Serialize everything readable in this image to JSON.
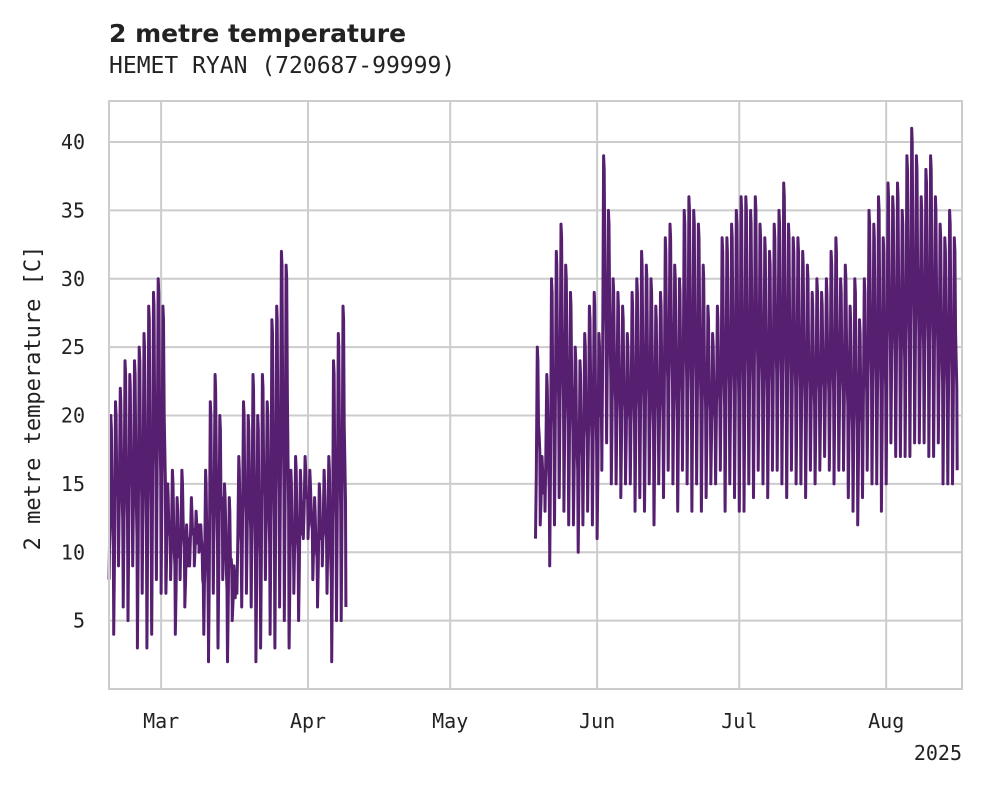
{
  "chart_data": {
    "type": "line",
    "title": "2 metre temperature",
    "subtitle": "HEMET RYAN (720687-99999)",
    "xlabel": "",
    "ylabel": "2 metre temperature [C]",
    "year_label": "2025",
    "x_ticks": [
      {
        "date": "2025-03-01",
        "label": "Mar"
      },
      {
        "date": "2025-04-01",
        "label": "Apr"
      },
      {
        "date": "2025-05-01",
        "label": "May"
      },
      {
        "date": "2025-06-01",
        "label": "Jun"
      },
      {
        "date": "2025-07-01",
        "label": "Jul"
      },
      {
        "date": "2025-08-01",
        "label": "Aug"
      }
    ],
    "y_ticks": [
      5,
      10,
      15,
      20,
      25,
      30,
      35,
      40
    ],
    "xlim": [
      "2025-02-18",
      "2025-08-17"
    ],
    "ylim": [
      0,
      43
    ],
    "grid": true,
    "series_color": "#561f70",
    "series": [
      {
        "segments": [
          {
            "start": "2025-02-18",
            "end": "2025-04-08",
            "daily_min": [
              8,
              4,
              9,
              6,
              5,
              9,
              3,
              7,
              3,
              4,
              8,
              7,
              7,
              8,
              4,
              8,
              6,
              9,
              9,
              10,
              4,
              2,
              7,
              3,
              8,
              2,
              5,
              7,
              6,
              7,
              6,
              2,
              3,
              8,
              4,
              3,
              6,
              5,
              3,
              7,
              5,
              11,
              11,
              8,
              6,
              9,
              7,
              2,
              5,
              5
            ],
            "daily_max": [
              20,
              21,
              22,
              24,
              23,
              24,
              25,
              26,
              28,
              29,
              30,
              28,
              15,
              16,
              14,
              16,
              12,
              14,
              13,
              12,
              16,
              21,
              23,
              20,
              15,
              14,
              9,
              17,
              21,
              20,
              23,
              20,
              23,
              21,
              27,
              28,
              32,
              31,
              16,
              17,
              16,
              17,
              16,
              14,
              15,
              16,
              17,
              24,
              26,
              28
            ]
          },
          {
            "start": "2025-05-19",
            "end": "2025-08-15",
            "daily_min": [
              11,
              12,
              13,
              9,
              12,
              14,
              13,
              12,
              12,
              10,
              12,
              13,
              12,
              11,
              16,
              18,
              15,
              15,
              14,
              15,
              15,
              13,
              14,
              13,
              15,
              12,
              15,
              14,
              16,
              15,
              13,
              16,
              15,
              13,
              15,
              13,
              14,
              15,
              15,
              16,
              13,
              15,
              14,
              13,
              13,
              15,
              14,
              16,
              15,
              14,
              16,
              16,
              15,
              14,
              16,
              15,
              15,
              14,
              16,
              15,
              16,
              17,
              16,
              15,
              16,
              16,
              14,
              13,
              12,
              14,
              16,
              15,
              15,
              13,
              15,
              18,
              17,
              17,
              17,
              17,
              18,
              18,
              18,
              17,
              17,
              18,
              15,
              15,
              15
            ],
            "daily_max": [
              25,
              17,
              23,
              30,
              32,
              34,
              31,
              29,
              25,
              24,
              26,
              28,
              29,
              26,
              39,
              35,
              30,
              29,
              28,
              26,
              29,
              30,
              32,
              31,
              30,
              28,
              29,
              33,
              34,
              31,
              30,
              35,
              36,
              35,
              34,
              31,
              28,
              26,
              28,
              33,
              33,
              34,
              35,
              36,
              36,
              35,
              36,
              34,
              33,
              32,
              34,
              35,
              37,
              34,
              33,
              33,
              32,
              31,
              29,
              30,
              29,
              30,
              32,
              33,
              30,
              31,
              28,
              30,
              27,
              30,
              35,
              34,
              36,
              33,
              37,
              36,
              37,
              35,
              39,
              41,
              39,
              36,
              38,
              39,
              36,
              34,
              33,
              35,
              33
            ]
          }
        ]
      }
    ]
  }
}
